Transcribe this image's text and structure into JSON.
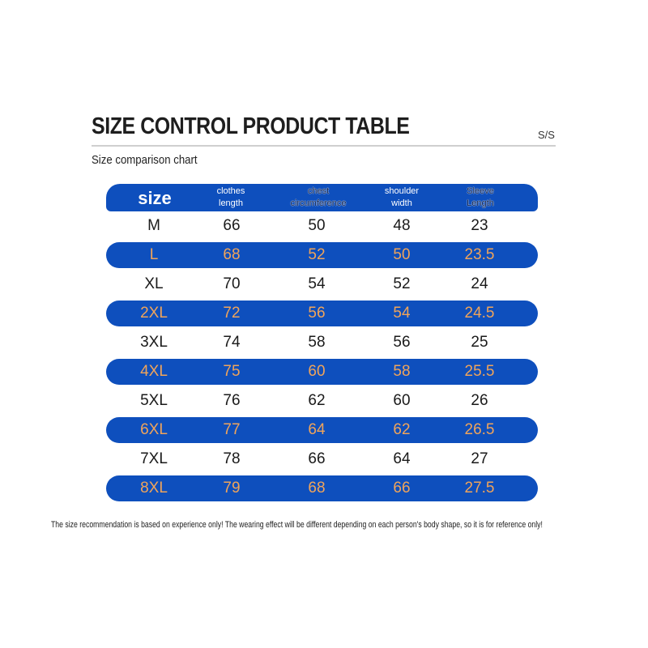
{
  "title": "SIZE CONTROL PRODUCT TABLE",
  "season_tag": "S/S",
  "subtitle": "Size comparison chart",
  "header": {
    "size": "size",
    "clothes_length": [
      "clothes",
      "length"
    ],
    "chest": [
      "chest",
      "circumference"
    ],
    "shoulder": [
      "shoulder",
      "width"
    ],
    "sleeve": [
      "Sleeve",
      "Length"
    ]
  },
  "rows": [
    [
      "M",
      "66",
      "50",
      "48",
      "23"
    ],
    [
      "L",
      "68",
      "52",
      "50",
      "23.5"
    ],
    [
      "XL",
      "70",
      "54",
      "52",
      "24"
    ],
    [
      "2XL",
      "72",
      "56",
      "54",
      "24.5"
    ],
    [
      "3XL",
      "74",
      "58",
      "56",
      "25"
    ],
    [
      "4XL",
      "75",
      "60",
      "58",
      "25.5"
    ],
    [
      "5XL",
      "76",
      "62",
      "60",
      "26"
    ],
    [
      "6XL",
      "77",
      "64",
      "62",
      "26.5"
    ],
    [
      "7XL",
      "78",
      "66",
      "64",
      "27"
    ],
    [
      "8XL",
      "79",
      "68",
      "66",
      "27.5"
    ]
  ],
  "note": "The size recommendation is based on experience only! The wearing effect will be different depending on each person's body shape, so it is for reference only!",
  "colors": {
    "band": "#0e4fbd",
    "band_text": "#f0a45a",
    "plain_text": "#1a1a1a"
  }
}
